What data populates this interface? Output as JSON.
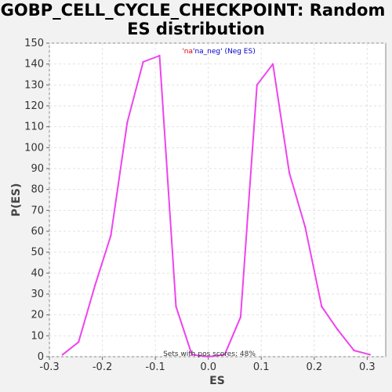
{
  "chart_data": {
    "type": "line",
    "title_line1": "GOBP_CELL_CYCLE_CHECKPOINT: Random",
    "title_line2": "ES distribution",
    "xlabel": "ES",
    "ylabel": "P(ES)",
    "xlim": [
      -0.3,
      0.335
    ],
    "ylim": [
      0,
      150
    ],
    "x_ticks": [
      -0.3,
      -0.2,
      -0.1,
      0.0,
      0.1,
      0.2,
      0.3
    ],
    "x_tick_labels": [
      "-0.3",
      "-0.2",
      "-0.1",
      "0.0",
      "0.1",
      "0.2",
      "0.3"
    ],
    "y_ticks": [
      0,
      10,
      20,
      30,
      40,
      50,
      60,
      70,
      80,
      90,
      100,
      110,
      120,
      130,
      140,
      150
    ],
    "grid": true,
    "legend": {
      "placement": "top-center",
      "parts": [
        {
          "text": "'na",
          "color": "#dd0000"
        },
        {
          "text": "'na_neg' (Neg ES)",
          "color": "#0000cc"
        }
      ]
    },
    "annotation": "Sets with pos scores: 48%",
    "series": [
      {
        "color": "#ee44ee",
        "x": [
          -0.275,
          -0.245,
          -0.214,
          -0.184,
          -0.153,
          -0.123,
          -0.092,
          -0.061,
          -0.031,
          0.0,
          0.031,
          0.061,
          0.092,
          0.122,
          0.153,
          0.183,
          0.214,
          0.244,
          0.275,
          0.305
        ],
        "y": [
          1,
          7,
          34,
          58,
          112,
          141,
          144,
          24,
          1,
          0,
          1,
          19,
          130,
          140,
          88,
          62,
          24,
          13,
          3,
          1
        ]
      }
    ]
  }
}
